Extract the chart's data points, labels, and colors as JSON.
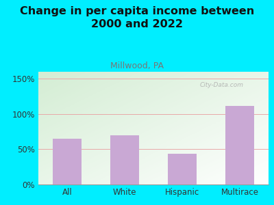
{
  "title": "Change in per capita income between\n2000 and 2022",
  "subtitle": "Millwood, PA",
  "categories": [
    "All",
    "White",
    "Hispanic",
    "Multirace"
  ],
  "values": [
    65,
    70,
    44,
    112
  ],
  "bar_color": "#c9a8d4",
  "title_fontsize": 11.5,
  "subtitle_fontsize": 9,
  "subtitle_color": "#777777",
  "title_color": "#111111",
  "background_outer": "#00eeff",
  "background_plot_tl": "#d4ecd4",
  "background_plot_br": "#f8f8f0",
  "ylim": [
    0,
    160
  ],
  "yticks": [
    0,
    50,
    100,
    150
  ],
  "ytick_labels": [
    "0%",
    "50%",
    "100%",
    "150%"
  ],
  "grid_color": "#e8a8a8",
  "grid_linewidth": 0.7
}
